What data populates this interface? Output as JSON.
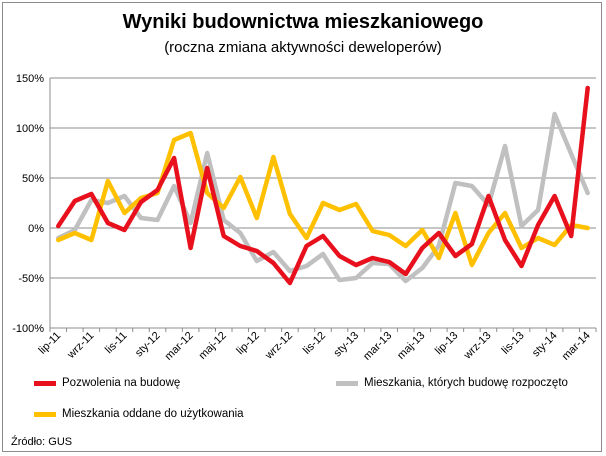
{
  "chart_data": {
    "type": "line",
    "title": "Wyniki budownictwa mieszkaniowego",
    "subtitle": "(roczna zmiana aktywności deweloperów)",
    "xlabel": "",
    "ylabel": "",
    "ylim": [
      -100,
      150
    ],
    "yticks": [
      -100,
      -50,
      0,
      50,
      100,
      150
    ],
    "ytick_labels": [
      "-100%",
      "-50%",
      "0%",
      "50%",
      "100%",
      "150%"
    ],
    "xtick_labels": [
      "lip-11",
      "wrz-11",
      "lis-11",
      "sty-12",
      "mar-12",
      "maj-12",
      "lip-12",
      "wrz-12",
      "lis-12",
      "sty-13",
      "mar-13",
      "maj-13",
      "lip-13",
      "wrz-13",
      "lis-13",
      "sty-14",
      "mar-14"
    ],
    "xtick_step": 2,
    "grid": true,
    "legend_position": "bottom",
    "series": [
      {
        "name": "Pozwolenia na budowę",
        "color": "#e8101c",
        "values": [
          2,
          27,
          34,
          5,
          -2,
          26,
          38,
          70,
          -20,
          60,
          -8,
          -18,
          -23,
          -35,
          -55,
          -18,
          -8,
          -28,
          -37,
          -30,
          -34,
          -46,
          -20,
          -5,
          -28,
          -16,
          32,
          -12,
          -38,
          3,
          32,
          -8,
          140
        ]
      },
      {
        "name": "Mieszkania, których budowę rozpoczęto",
        "color": "#c0c0c0",
        "values": [
          -10,
          -2,
          28,
          25,
          32,
          10,
          8,
          42,
          5,
          75,
          8,
          -5,
          -33,
          -24,
          -43,
          -38,
          -26,
          -52,
          -50,
          -35,
          -36,
          -53,
          -40,
          -18,
          45,
          42,
          23,
          82,
          2,
          18,
          114,
          74,
          35
        ]
      },
      {
        "name": "Mieszkania oddane do użytkowania",
        "color": "#ffc000",
        "values": [
          -12,
          -5,
          -12,
          47,
          15,
          30,
          35,
          88,
          95,
          35,
          20,
          51,
          10,
          71,
          14,
          -10,
          25,
          18,
          24,
          -3,
          -7,
          -18,
          -2,
          -30,
          15,
          -37,
          -5,
          15,
          -20,
          -10,
          -17,
          3,
          0
        ]
      }
    ]
  },
  "source_note": "Źródło: GUS"
}
